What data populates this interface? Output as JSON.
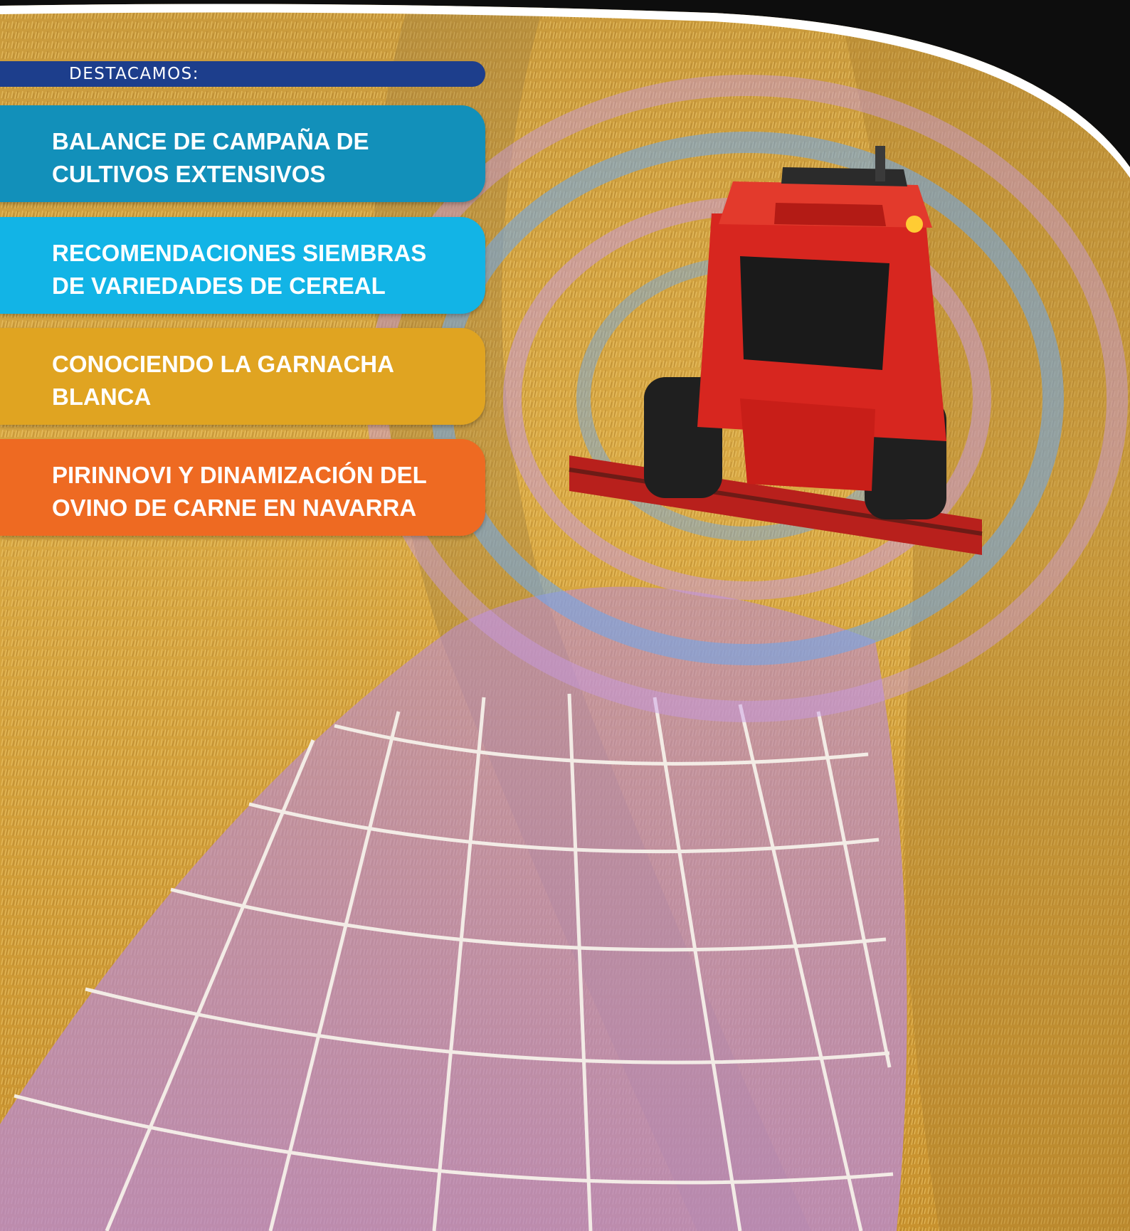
{
  "header": {
    "label": "DESTACAMOS:",
    "color": "#1d3e8c"
  },
  "items": [
    {
      "text": "BALANCE DE CAMPAÑA DE\nCULTIVOS EXTENSIVOS",
      "color": "#1290ba"
    },
    {
      "text": "RECOMENDACIONES SIEMBRAS\nDE VARIEDADES DE CEREAL",
      "color": "#12b4e6"
    },
    {
      "text": "CONOCIENDO LA GARNACHA\nBLANCA",
      "color": "#e0a421"
    },
    {
      "text": "PIRINNOVI Y DINAMIZACIÓN DEL\nOVINO DE CARNE EN NAVARRA",
      "color": "#ee6a22"
    }
  ]
}
